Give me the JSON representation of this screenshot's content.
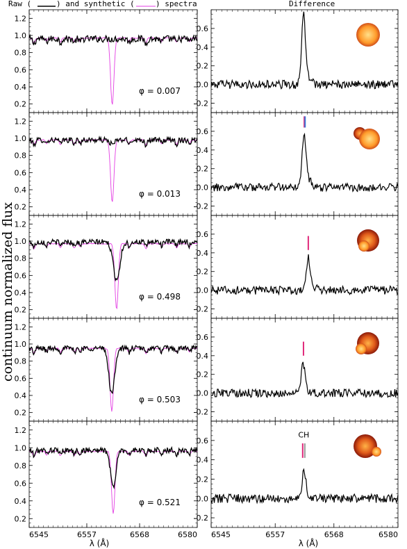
{
  "header": {
    "left_part1": "Raw (",
    "left_part2": ") and synthetic (",
    "left_part3": ") spectra",
    "right": "Difference"
  },
  "ylabel": "continuum normalized flux",
  "xlabel": "λ (Å)",
  "colors": {
    "raw": "#000000",
    "synthetic": "#e33ee3",
    "marker_magenta": "#e0287a",
    "marker_blue": "#3a7ad9",
    "marker_gray": "#9a9a9a"
  },
  "chart_data": [
    {
      "type": "line",
      "panel": "left",
      "phase_label": "φ = 0.007",
      "xlim": [
        6545,
        6580
      ],
      "ylim": [
        0.1,
        1.3
      ],
      "yticks": [
        0.2,
        0.4,
        0.6,
        0.8,
        1.0,
        1.2
      ],
      "line_center": 6562.3,
      "series": [
        {
          "name": "Raw",
          "continuum": 0.96,
          "depth": 0.0,
          "noise": 0.05,
          "width": 0.5
        },
        {
          "name": "synthetic",
          "continuum": 0.97,
          "depth": 0.78,
          "noise": 0.02,
          "width": 0.35
        }
      ]
    },
    {
      "type": "line",
      "panel": "left",
      "phase_label": "φ = 0.013",
      "xlim": [
        6545,
        6580
      ],
      "ylim": [
        0.1,
        1.3
      ],
      "yticks": [
        0.2,
        0.4,
        0.6,
        0.8,
        1.0,
        1.2
      ],
      "line_center": 6562.3,
      "series": [
        {
          "name": "Raw",
          "continuum": 0.98,
          "depth": 0.05,
          "noise": 0.04,
          "width": 0.5
        },
        {
          "name": "synthetic",
          "continuum": 0.98,
          "depth": 0.73,
          "noise": 0.02,
          "width": 0.35
        }
      ]
    },
    {
      "type": "line",
      "panel": "left",
      "phase_label": "φ = 0.498",
      "xlim": [
        6545,
        6580
      ],
      "ylim": [
        0.1,
        1.3
      ],
      "yticks": [
        0.2,
        0.4,
        0.6,
        0.8,
        1.0,
        1.2
      ],
      "line_center": 6563.2,
      "series": [
        {
          "name": "Raw",
          "continuum": 0.99,
          "depth": 0.44,
          "noise": 0.04,
          "width": 0.7
        },
        {
          "name": "synthetic",
          "continuum": 0.97,
          "depth": 0.77,
          "noise": 0.02,
          "width": 0.35
        }
      ]
    },
    {
      "type": "line",
      "panel": "left",
      "phase_label": "φ = 0.503",
      "xlim": [
        6545,
        6580
      ],
      "ylim": [
        0.1,
        1.3
      ],
      "yticks": [
        0.2,
        0.4,
        0.6,
        0.8,
        1.0,
        1.2
      ],
      "line_center": 6562.2,
      "series": [
        {
          "name": "Raw",
          "continuum": 0.95,
          "depth": 0.53,
          "noise": 0.04,
          "width": 0.6
        },
        {
          "name": "synthetic",
          "continuum": 0.95,
          "depth": 0.74,
          "noise": 0.02,
          "width": 0.35
        }
      ]
    },
    {
      "type": "line",
      "panel": "left",
      "phase_label": "φ = 0.521",
      "xlim": [
        6545,
        6580
      ],
      "ylim": [
        0.1,
        1.3
      ],
      "yticks": [
        0.2,
        0.4,
        0.6,
        0.8,
        1.0,
        1.2
      ],
      "line_center": 6562.5,
      "series": [
        {
          "name": "Raw",
          "continuum": 0.97,
          "depth": 0.42,
          "noise": 0.04,
          "width": 0.55
        },
        {
          "name": "synthetic",
          "continuum": 0.96,
          "depth": 0.71,
          "noise": 0.02,
          "width": 0.35
        }
      ]
    },
    {
      "type": "line",
      "panel": "right",
      "xlim": [
        6545,
        6580
      ],
      "ylim": [
        -0.3,
        0.8
      ],
      "yticks": [
        -0.2,
        0.0,
        0.2,
        0.4,
        0.6
      ],
      "peak_center": 6562.3,
      "peak_height": 0.75,
      "markers": []
    },
    {
      "type": "line",
      "panel": "right",
      "xlim": [
        6545,
        6580
      ],
      "ylim": [
        -0.3,
        0.8
      ],
      "yticks": [
        -0.2,
        0.0,
        0.2,
        0.4,
        0.6
      ],
      "peak_center": 6562.4,
      "peak_height": 0.54,
      "markers": [
        {
          "x": 6562.45,
          "color": "#e0287a",
          "y0": 0.64,
          "y1": 0.76
        },
        {
          "x": 6562.6,
          "color": "#3a7ad9",
          "y0": 0.64,
          "y1": 0.76
        }
      ]
    },
    {
      "type": "line",
      "panel": "right",
      "xlim": [
        6545,
        6580
      ],
      "ylim": [
        -0.3,
        0.8
      ],
      "yticks": [
        -0.2,
        0.0,
        0.2,
        0.4,
        0.6
      ],
      "peak_center": 6563.2,
      "peak_height": 0.33,
      "markers": [
        {
          "x": 6563.2,
          "color": "#e0287a",
          "y0": 0.43,
          "y1": 0.58
        }
      ]
    },
    {
      "type": "line",
      "panel": "right",
      "xlim": [
        6545,
        6580
      ],
      "ylim": [
        -0.3,
        0.8
      ],
      "yticks": [
        -0.2,
        0.0,
        0.2,
        0.4,
        0.6
      ],
      "peak_center": 6562.2,
      "peak_height": 0.3,
      "markers": [
        {
          "x": 6562.3,
          "color": "#e0287a",
          "y0": 0.4,
          "y1": 0.55
        }
      ]
    },
    {
      "type": "line",
      "panel": "right",
      "xlim": [
        6545,
        6580
      ],
      "ylim": [
        -0.3,
        0.8
      ],
      "yticks": [
        -0.2,
        0.0,
        0.2,
        0.4,
        0.6
      ],
      "peak_center": 6562.4,
      "peak_height": 0.28,
      "marker_text": "CH",
      "markers": [
        {
          "x": 6562.15,
          "color": "#e0287a",
          "y0": 0.42,
          "y1": 0.57
        },
        {
          "x": 6562.55,
          "color": "#9a9a9a",
          "y0": 0.42,
          "y1": 0.57
        }
      ]
    }
  ],
  "xticks": [
    "6545",
    "6557",
    "6568",
    "6580"
  ],
  "xtick_values": [
    6545,
    6557,
    6568,
    6580
  ]
}
